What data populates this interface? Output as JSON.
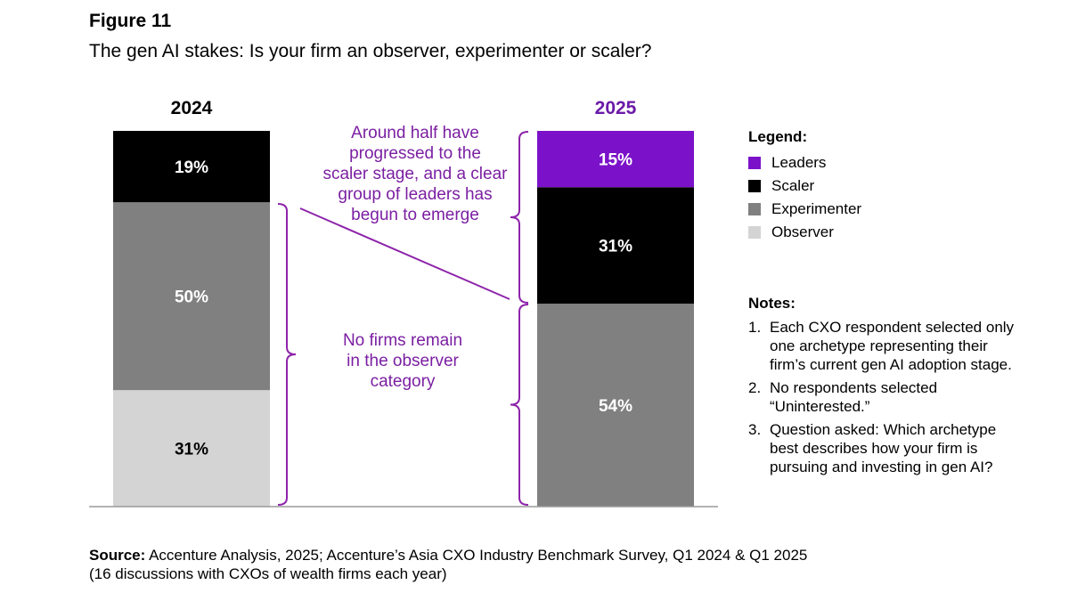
{
  "figure_label": "Figure 11",
  "title": "The gen AI stakes: Is your firm an observer, experimenter or scaler?",
  "chart_data": {
    "type": "bar",
    "stacked": true,
    "categories": [
      "2024",
      "2025"
    ],
    "series": [
      {
        "name": "Observer",
        "values": [
          31,
          0
        ],
        "color": "#d4d4d4"
      },
      {
        "name": "Experimenter",
        "values": [
          50,
          54
        ],
        "color": "#808080"
      },
      {
        "name": "Scaler",
        "values": [
          19,
          31
        ],
        "color": "#000000"
      },
      {
        "name": "Leaders",
        "values": [
          0,
          15
        ],
        "color": "#7b12c9"
      }
    ],
    "data_labels": [
      {
        "category": "2024",
        "series": "Scaler",
        "text": "19%"
      },
      {
        "category": "2024",
        "series": "Experimenter",
        "text": "50%"
      },
      {
        "category": "2024",
        "series": "Observer",
        "text": "31%"
      },
      {
        "category": "2025",
        "series": "Leaders",
        "text": "15%"
      },
      {
        "category": "2025",
        "series": "Scaler",
        "text": "31%"
      },
      {
        "category": "2025",
        "series": "Experimenter",
        "text": "54%"
      }
    ],
    "ylim": [
      0,
      100
    ],
    "grid": false,
    "category_colors": {
      "2024": "#000000",
      "2025": "#6b1aa8"
    },
    "annotations": [
      {
        "lines": [
          "Around half have",
          "progressed to the",
          "scaler stage, and a clear",
          "group of leaders has",
          "begun to emerge"
        ],
        "color": "#7b1fa2"
      },
      {
        "lines": [
          "No firms remain",
          "in the observer",
          "category"
        ],
        "color": "#7b1fa2"
      }
    ]
  },
  "legend": {
    "heading": "Legend:",
    "items": [
      {
        "label": "Leaders",
        "color": "#7b12c9"
      },
      {
        "label": "Scaler",
        "color": "#000000"
      },
      {
        "label": "Experimenter",
        "color": "#808080"
      },
      {
        "label": "Observer",
        "color": "#d4d4d4"
      }
    ]
  },
  "notes": {
    "heading": "Notes:",
    "items": [
      {
        "num": "1.",
        "text": "Each CXO respondent selected only one archetype representing their firm’s current gen AI adoption stage."
      },
      {
        "num": "2.",
        "text": "No respondents selected “Uninterested.”"
      },
      {
        "num": "3.",
        "text": "Question asked: Which archetype best describes how your firm is pursuing and investing in gen AI?"
      }
    ]
  },
  "source": {
    "label": "Source:",
    "text": " Accenture Analysis, 2025; Accenture’s Asia CXO Industry Benchmark Survey, Q1 2024 & Q1 2025",
    "text2": "(16 discussions with CXOs of wealth firms each year)"
  }
}
